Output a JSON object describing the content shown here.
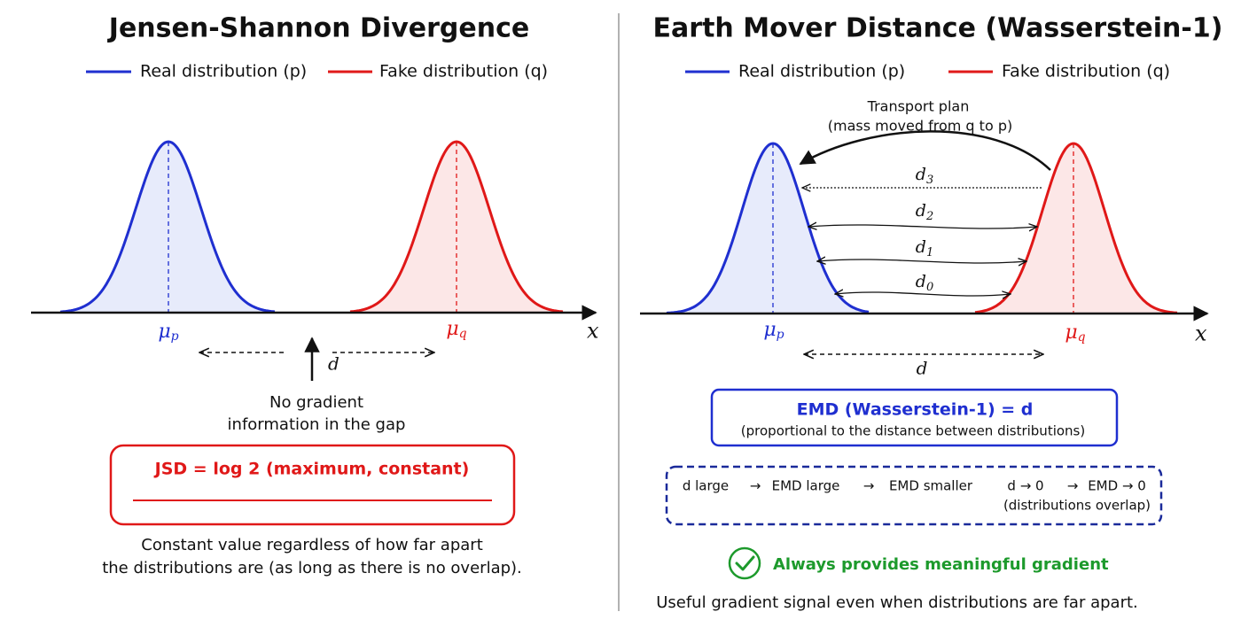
{
  "left": {
    "title": "Jensen-Shannon Divergence",
    "legend": [
      "Real distribution (p)",
      "Fake distribution (q)"
    ],
    "axis_label": "x",
    "means": [
      {
        "symbol": "μ",
        "sub": "p"
      },
      {
        "symbol": "μ",
        "sub": "q"
      }
    ],
    "gap_label": "d",
    "gap_note": [
      "No gradient",
      "information in the gap"
    ],
    "result": "JSD = log 2 (maximum, constant)",
    "caption": [
      "Constant value regardless of how far apart",
      "the distributions are (as long as there is no overlap)."
    ]
  },
  "right": {
    "title": "Earth Mover Distance (Wasserstein-1)",
    "legend": [
      "Real distribution (p)",
      "Fake distribution (q)"
    ],
    "transport": [
      "Transport plan",
      "(mass moved from q to p)"
    ],
    "axis_label": "x",
    "means": [
      {
        "symbol": "μ",
        "sub": "p"
      },
      {
        "symbol": "μ",
        "sub": "q"
      }
    ],
    "distances": [
      {
        "symbol": "d",
        "sub": "3"
      },
      {
        "symbol": "d",
        "sub": "2"
      },
      {
        "symbol": "d",
        "sub": "1"
      },
      {
        "symbol": "d",
        "sub": "0"
      }
    ],
    "gap_label": "d",
    "result": "EMD (Wasserstein-1) = d",
    "result_note": "(proportional to the distance between distributions)",
    "trend": [
      "d large",
      "→",
      "EMD large",
      "→",
      "EMD smaller",
      "d → 0",
      "→",
      "EMD → 0"
    ],
    "trend_note": "(distributions overlap)",
    "benefit": "Always provides meaningful gradient",
    "caption": "Useful gradient signal even when distributions are far apart."
  }
}
